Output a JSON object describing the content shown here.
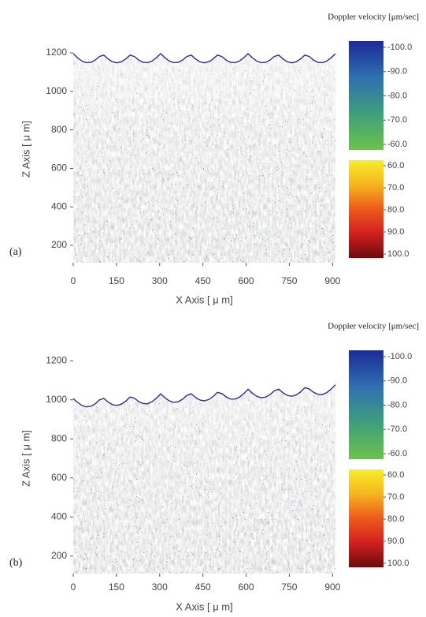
{
  "chart_data": [
    {
      "type": "image",
      "panel_label": "(a)",
      "xlabel": "X Axis [ μ m]",
      "ylabel": "Z Axis [ μ m]",
      "xlim": [
        0,
        910
      ],
      "xticks": [
        0,
        150,
        300,
        450,
        600,
        750,
        900
      ],
      "ylim": [
        110,
        1290
      ],
      "yticks": [
        200,
        400,
        600,
        800,
        1000,
        1200
      ],
      "colorbar_label": "Doppler velocity [μm/sec]",
      "colorbar": [
        {
          "range": [
            -100,
            -60
          ],
          "colors": [
            "#1b2a98",
            "#2f6fb0",
            "#3f9f7a",
            "#6cc24a"
          ],
          "ticks": [
            {
              "value": -100,
              "label": "-100.0"
            },
            {
              "value": -90,
              "label": "-90.0"
            },
            {
              "value": -80,
              "label": "-80.0"
            },
            {
              "value": -70,
              "label": "-70.0"
            },
            {
              "value": -60,
              "label": "-60.0"
            }
          ]
        },
        {
          "range": [
            60,
            100
          ],
          "colors": [
            "#f7ee2a",
            "#f5b51e",
            "#ee5a1c",
            "#d21f1f",
            "#6a0c0c"
          ],
          "ticks": [
            {
              "value": 60,
              "label": "60.0"
            },
            {
              "value": 70,
              "label": "70.0"
            },
            {
              "value": 80,
              "label": "80.0"
            },
            {
              "value": 90,
              "label": "90.0"
            },
            {
              "value": 100,
              "label": "100.0"
            }
          ]
        }
      ]
    },
    {
      "type": "image",
      "panel_label": "(b)",
      "xlabel": "X Axis [ μ m]",
      "ylabel": "Z Axis [ μ m]",
      "xlim": [
        0,
        910
      ],
      "xticks": [
        0,
        150,
        300,
        450,
        600,
        750,
        900
      ],
      "ylim": [
        110,
        1290
      ],
      "yticks": [
        200,
        400,
        600,
        800,
        1000,
        1200
      ],
      "colorbar_label": "Doppler velocity [μm/sec]",
      "colorbar": [
        {
          "range": [
            -100,
            -60
          ],
          "colors": [
            "#1b2a98",
            "#2f6fb0",
            "#3f9f7a",
            "#6cc24a"
          ],
          "ticks": [
            {
              "value": -100,
              "label": "-100.0"
            },
            {
              "value": -90,
              "label": "-90.0"
            },
            {
              "value": -80,
              "label": "-80.0"
            },
            {
              "value": -70,
              "label": "-70.0"
            },
            {
              "value": -60,
              "label": "-60.0"
            }
          ]
        },
        {
          "range": [
            60,
            100
          ],
          "colors": [
            "#f7ee2a",
            "#f5b51e",
            "#ee5a1c",
            "#d21f1f",
            "#6a0c0c"
          ],
          "ticks": [
            {
              "value": 60,
              "label": "60.0"
            },
            {
              "value": 70,
              "label": "70.0"
            },
            {
              "value": 80,
              "label": "80.0"
            },
            {
              "value": 90,
              "label": "90.0"
            },
            {
              "value": 100,
              "label": "100.0"
            }
          ]
        }
      ]
    }
  ]
}
